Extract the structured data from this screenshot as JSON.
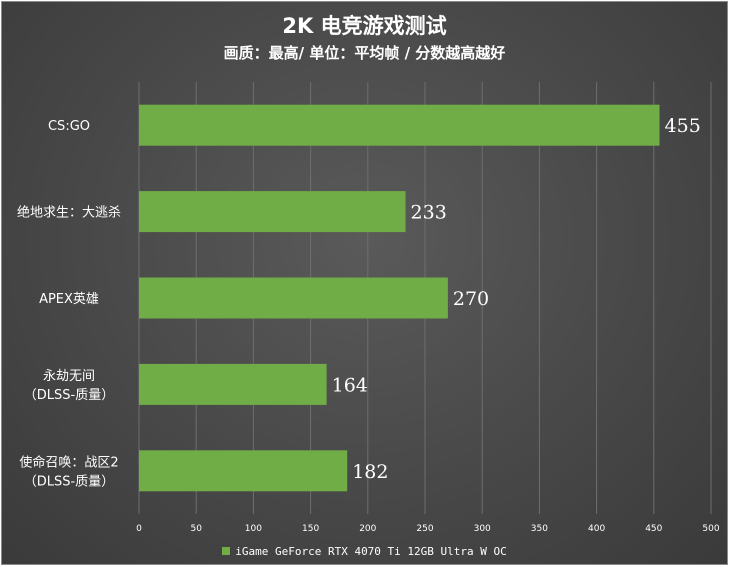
{
  "chart_data": {
    "type": "bar",
    "orientation": "horizontal",
    "title": "2K 电竞游戏测试",
    "subtitle": "画质：最高/ 单位：平均帧 / 分数越高越好",
    "categories": [
      [
        "CS:GO"
      ],
      [
        "绝地求生：大逃杀"
      ],
      [
        "APEX英雄"
      ],
      [
        "永劫无间",
        "（DLSS-质量）"
      ],
      [
        "使命召唤：战区2",
        "（DLSS-质量）"
      ]
    ],
    "series": [
      {
        "name": "iGame GeForce RTX 4070 Ti 12GB Ultra W OC",
        "values": [
          455,
          233,
          270,
          164,
          182
        ]
      }
    ],
    "xlim": [
      0,
      500
    ],
    "xticks": [
      0,
      50,
      100,
      150,
      200,
      250,
      300,
      350,
      400,
      450,
      500
    ],
    "xlabel": "",
    "ylabel": "",
    "grid": "vertical",
    "legend": "bottom",
    "colors": {
      "bar": "#70ad47",
      "background": "#4a4a4a",
      "grid": "#6e6e6e",
      "text": "#ffffff"
    }
  }
}
